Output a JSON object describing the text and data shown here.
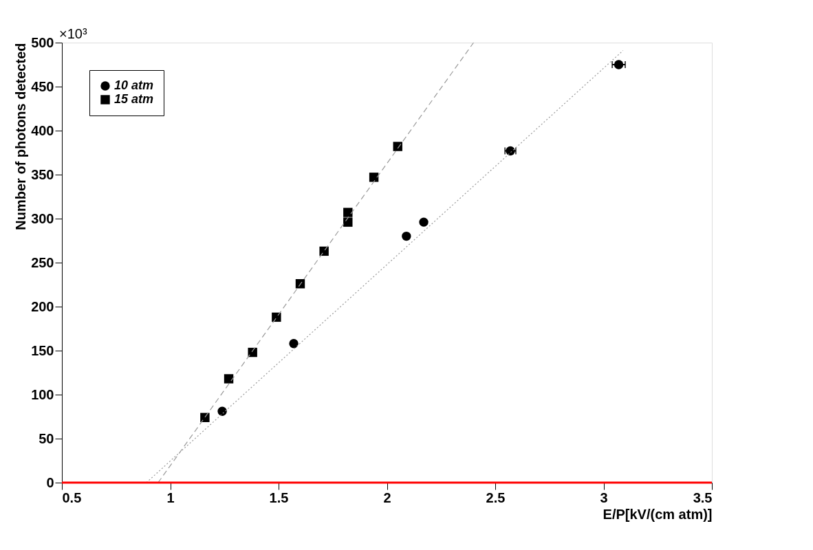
{
  "chart_data": {
    "type": "scatter",
    "xlabel": "E/P[kV/(cm atm)]",
    "ylabel": "Number of photons detected",
    "annotations": [
      "×10³"
    ],
    "xlim": [
      0.5,
      3.5
    ],
    "xticks": [
      0.5,
      1,
      1.5,
      2,
      2.5,
      3,
      3.5
    ],
    "ylim": [
      0,
      500
    ],
    "yticks": [
      0,
      50,
      100,
      150,
      200,
      250,
      300,
      350,
      400,
      450,
      500
    ],
    "grid": false,
    "legend": "top left",
    "series": [
      {
        "name": "10 atm",
        "color": "#000000",
        "marker": "circle",
        "x": [
          1.24,
          1.57,
          2.09,
          2.17,
          2.57,
          3.07
        ],
        "values": [
          81,
          158,
          280,
          296,
          377,
          475
        ],
        "xerrors": [
          null,
          null,
          null,
          null,
          0.025,
          0.03
        ]
      },
      {
        "name": "15 atm",
        "color": "#000000",
        "marker": "square",
        "x": [
          1.16,
          1.27,
          1.38,
          1.49,
          1.6,
          1.71,
          1.82,
          1.82,
          1.94,
          2.05
        ],
        "values": [
          74,
          118,
          148,
          188,
          226,
          263,
          296,
          307,
          347,
          382
        ]
      },
      {
        "type": "line",
        "color": "#999999",
        "line_style": "dotted",
        "x": [
          0.89,
          3.09
        ],
        "values": [
          0,
          491
        ]
      },
      {
        "type": "line",
        "color": "#999999",
        "line_style": "dashed",
        "x": [
          0.944,
          2.4
        ],
        "values": [
          0,
          500
        ]
      }
    ],
    "ref_lines": [
      {
        "axis": "y",
        "value": 0,
        "color": "#ff0000"
      }
    ]
  }
}
